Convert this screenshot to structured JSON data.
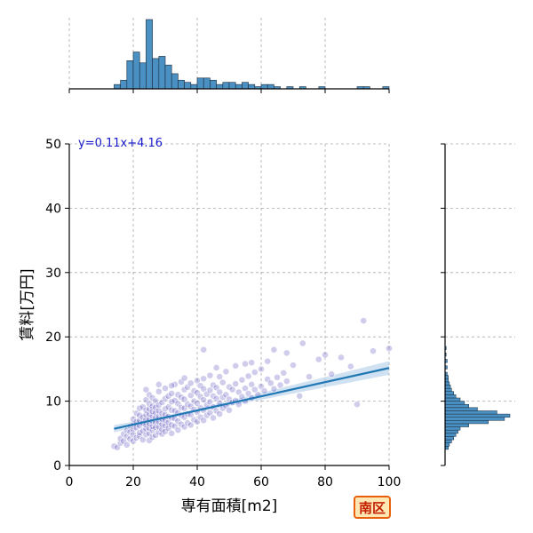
{
  "badge": {
    "label": "南区"
  },
  "chart_data": {
    "type": "scatter",
    "xlabel": "専有面積[m2]",
    "ylabel": "賃料[万円]",
    "xlim": [
      0,
      100
    ],
    "ylim": [
      0,
      50
    ],
    "xticks": [
      "0",
      "20",
      "40",
      "60",
      "80",
      "100"
    ],
    "yticks": [
      "0",
      "10",
      "20",
      "30",
      "40",
      "50"
    ],
    "grid": true,
    "regression": {
      "label": "y=0.11x+4.16",
      "slope": 0.11,
      "intercept": 4.16,
      "x_range": [
        14,
        100
      ],
      "color": "#1f77b4",
      "ci_color": "#aac8e6"
    },
    "scatter_color": "#2a1aa8",
    "marginal_color": "#4a90c2",
    "top_histogram": {
      "bin_width": 2,
      "bins": [
        {
          "x0": 14,
          "count": 2
        },
        {
          "x0": 16,
          "count": 4
        },
        {
          "x0": 18,
          "count": 13
        },
        {
          "x0": 20,
          "count": 17
        },
        {
          "x0": 22,
          "count": 12
        },
        {
          "x0": 24,
          "count": 32
        },
        {
          "x0": 26,
          "count": 14
        },
        {
          "x0": 28,
          "count": 15
        },
        {
          "x0": 30,
          "count": 11
        },
        {
          "x0": 32,
          "count": 7
        },
        {
          "x0": 34,
          "count": 4
        },
        {
          "x0": 36,
          "count": 3
        },
        {
          "x0": 38,
          "count": 2
        },
        {
          "x0": 40,
          "count": 5
        },
        {
          "x0": 42,
          "count": 5
        },
        {
          "x0": 44,
          "count": 4
        },
        {
          "x0": 46,
          "count": 2
        },
        {
          "x0": 48,
          "count": 3
        },
        {
          "x0": 50,
          "count": 3
        },
        {
          "x0": 52,
          "count": 2
        },
        {
          "x0": 54,
          "count": 3
        },
        {
          "x0": 56,
          "count": 2
        },
        {
          "x0": 58,
          "count": 1
        },
        {
          "x0": 60,
          "count": 2
        },
        {
          "x0": 62,
          "count": 2
        },
        {
          "x0": 64,
          "count": 1
        },
        {
          "x0": 66,
          "count": 0
        },
        {
          "x0": 68,
          "count": 1
        },
        {
          "x0": 70,
          "count": 0
        },
        {
          "x0": 72,
          "count": 1
        },
        {
          "x0": 74,
          "count": 0
        },
        {
          "x0": 76,
          "count": 0
        },
        {
          "x0": 78,
          "count": 1
        },
        {
          "x0": 80,
          "count": 0
        },
        {
          "x0": 82,
          "count": 0
        },
        {
          "x0": 84,
          "count": 0
        },
        {
          "x0": 86,
          "count": 0
        },
        {
          "x0": 88,
          "count": 0
        },
        {
          "x0": 90,
          "count": 1
        },
        {
          "x0": 92,
          "count": 1
        },
        {
          "x0": 94,
          "count": 0
        },
        {
          "x0": 96,
          "count": 0
        },
        {
          "x0": 98,
          "count": 1
        }
      ]
    },
    "right_histogram": {
      "bin_width": 0.5,
      "bins": [
        {
          "y0": 2.5,
          "count": 3
        },
        {
          "y0": 3.0,
          "count": 4
        },
        {
          "y0": 3.5,
          "count": 6
        },
        {
          "y0": 4.0,
          "count": 8
        },
        {
          "y0": 4.5,
          "count": 10
        },
        {
          "y0": 5.0,
          "count": 12
        },
        {
          "y0": 5.5,
          "count": 14
        },
        {
          "y0": 6.0,
          "count": 22
        },
        {
          "y0": 6.5,
          "count": 40
        },
        {
          "y0": 7.0,
          "count": 55
        },
        {
          "y0": 7.5,
          "count": 60
        },
        {
          "y0": 8.0,
          "count": 48
        },
        {
          "y0": 8.5,
          "count": 30
        },
        {
          "y0": 9.0,
          "count": 22
        },
        {
          "y0": 9.5,
          "count": 18
        },
        {
          "y0": 10.0,
          "count": 14
        },
        {
          "y0": 10.5,
          "count": 10
        },
        {
          "y0": 11.0,
          "count": 8
        },
        {
          "y0": 11.5,
          "count": 6
        },
        {
          "y0": 12.0,
          "count": 5
        },
        {
          "y0": 12.5,
          "count": 4
        },
        {
          "y0": 13.0,
          "count": 3
        },
        {
          "y0": 13.5,
          "count": 3
        },
        {
          "y0": 14.0,
          "count": 2
        },
        {
          "y0": 15.0,
          "count": 2
        },
        {
          "y0": 16.0,
          "count": 2
        },
        {
          "y0": 17.0,
          "count": 1
        },
        {
          "y0": 18.0,
          "count": 1
        }
      ]
    },
    "points": [
      [
        14,
        3
      ],
      [
        15,
        2.8
      ],
      [
        16,
        3.5
      ],
      [
        16,
        4.2
      ],
      [
        17,
        3.8
      ],
      [
        17,
        4.9
      ],
      [
        18,
        4.5
      ],
      [
        18,
        5.5
      ],
      [
        18,
        3.2
      ],
      [
        19,
        4.1
      ],
      [
        19,
        6.1
      ],
      [
        19,
        5.2
      ],
      [
        20,
        3.8
      ],
      [
        20,
        4.8
      ],
      [
        20,
        5.6
      ],
      [
        20,
        6.4
      ],
      [
        20,
        7.2
      ],
      [
        21,
        4.3
      ],
      [
        21,
        5.9
      ],
      [
        21,
        6.8
      ],
      [
        21,
        8.1
      ],
      [
        22,
        4.6
      ],
      [
        22,
        5.1
      ],
      [
        22,
        6.2
      ],
      [
        22,
        7.0
      ],
      [
        22,
        7.8
      ],
      [
        22,
        8.9
      ],
      [
        23,
        4.0
      ],
      [
        23,
        5.4
      ],
      [
        23,
        6.6
      ],
      [
        23,
        7.5
      ],
      [
        23,
        9.1
      ],
      [
        24,
        4.8
      ],
      [
        24,
        5.7
      ],
      [
        24,
        6.3
      ],
      [
        24,
        7.1
      ],
      [
        24,
        7.9
      ],
      [
        24,
        8.6
      ],
      [
        24,
        10.2
      ],
      [
        25,
        3.9
      ],
      [
        25,
        5.0
      ],
      [
        25,
        5.8
      ],
      [
        25,
        6.5
      ],
      [
        25,
        7.3
      ],
      [
        25,
        8.0
      ],
      [
        25,
        8.8
      ],
      [
        25,
        9.6
      ],
      [
        25,
        11.0
      ],
      [
        26,
        4.4
      ],
      [
        26,
        5.5
      ],
      [
        26,
        6.1
      ],
      [
        26,
        6.9
      ],
      [
        26,
        7.7
      ],
      [
        26,
        8.4
      ],
      [
        26,
        9.2
      ],
      [
        26,
        10.5
      ],
      [
        27,
        4.7
      ],
      [
        27,
        5.9
      ],
      [
        27,
        6.7
      ],
      [
        27,
        7.4
      ],
      [
        27,
        8.2
      ],
      [
        27,
        9.0
      ],
      [
        27,
        10.0
      ],
      [
        28,
        5.2
      ],
      [
        28,
        6.0
      ],
      [
        28,
        6.8
      ],
      [
        28,
        7.6
      ],
      [
        28,
        8.5
      ],
      [
        28,
        9.4
      ],
      [
        28,
        11.5
      ],
      [
        29,
        4.9
      ],
      [
        29,
        5.6
      ],
      [
        29,
        6.4
      ],
      [
        29,
        7.2
      ],
      [
        29,
        8.1
      ],
      [
        29,
        9.8
      ],
      [
        30,
        5.3
      ],
      [
        30,
        6.2
      ],
      [
        30,
        7.0
      ],
      [
        30,
        7.9
      ],
      [
        30,
        8.8
      ],
      [
        30,
        10.4
      ],
      [
        30,
        12.0
      ],
      [
        31,
        5.8
      ],
      [
        31,
        6.7
      ],
      [
        31,
        7.6
      ],
      [
        31,
        9.1
      ],
      [
        31,
        10.8
      ],
      [
        32,
        5.0
      ],
      [
        32,
        6.3
      ],
      [
        32,
        7.4
      ],
      [
        32,
        8.6
      ],
      [
        32,
        9.9
      ],
      [
        32,
        11.2
      ],
      [
        33,
        6.1
      ],
      [
        33,
        7.3
      ],
      [
        33,
        8.5
      ],
      [
        33,
        10.1
      ],
      [
        33,
        12.6
      ],
      [
        34,
        5.5
      ],
      [
        34,
        6.9
      ],
      [
        34,
        8.2
      ],
      [
        34,
        9.6
      ],
      [
        34,
        11.0
      ],
      [
        35,
        6.4
      ],
      [
        35,
        7.8
      ],
      [
        35,
        9.0
      ],
      [
        35,
        10.6
      ],
      [
        35,
        13.0
      ],
      [
        36,
        6.0
      ],
      [
        36,
        7.5
      ],
      [
        36,
        8.9
      ],
      [
        36,
        10.3
      ],
      [
        36,
        11.8
      ],
      [
        37,
        6.6
      ],
      [
        37,
        8.0
      ],
      [
        37,
        9.5
      ],
      [
        37,
        12.2
      ],
      [
        38,
        6.3
      ],
      [
        38,
        7.9
      ],
      [
        38,
        9.2
      ],
      [
        38,
        10.9
      ],
      [
        38,
        12.8
      ],
      [
        39,
        7.1
      ],
      [
        39,
        8.7
      ],
      [
        39,
        10.0
      ],
      [
        39,
        11.6
      ],
      [
        40,
        6.8
      ],
      [
        40,
        8.3
      ],
      [
        40,
        9.7
      ],
      [
        40,
        11.3
      ],
      [
        40,
        13.2
      ],
      [
        41,
        7.5
      ],
      [
        41,
        9.0
      ],
      [
        41,
        10.7
      ],
      [
        41,
        12.4
      ],
      [
        42,
        7.0
      ],
      [
        42,
        8.6
      ],
      [
        42,
        10.2
      ],
      [
        42,
        11.9
      ],
      [
        42,
        13.5
      ],
      [
        43,
        7.8
      ],
      [
        43,
        9.4
      ],
      [
        43,
        11.1
      ],
      [
        44,
        8.2
      ],
      [
        44,
        9.9
      ],
      [
        44,
        11.7
      ],
      [
        44,
        14.0
      ],
      [
        45,
        7.4
      ],
      [
        45,
        9.1
      ],
      [
        45,
        10.8
      ],
      [
        45,
        12.5
      ],
      [
        46,
        8.5
      ],
      [
        46,
        10.4
      ],
      [
        46,
        12.1
      ],
      [
        47,
        8.0
      ],
      [
        47,
        9.7
      ],
      [
        47,
        11.4
      ],
      [
        47,
        13.8
      ],
      [
        48,
        8.9
      ],
      [
        48,
        10.6
      ],
      [
        48,
        12.9
      ],
      [
        49,
        9.3
      ],
      [
        49,
        11.0
      ],
      [
        49,
        14.6
      ],
      [
        50,
        8.6
      ],
      [
        50,
        10.3
      ],
      [
        50,
        12.2
      ],
      [
        51,
        9.8
      ],
      [
        51,
        11.8
      ],
      [
        52,
        10.1
      ],
      [
        52,
        12.7
      ],
      [
        52,
        15.5
      ],
      [
        53,
        9.5
      ],
      [
        53,
        11.4
      ],
      [
        54,
        10.7
      ],
      [
        54,
        13.3
      ],
      [
        55,
        10.0
      ],
      [
        55,
        12.0
      ],
      [
        55,
        15.8
      ],
      [
        56,
        11.2
      ],
      [
        56,
        13.9
      ],
      [
        57,
        10.5
      ],
      [
        57,
        12.6
      ],
      [
        58,
        11.8
      ],
      [
        58,
        14.5
      ],
      [
        59,
        11.0
      ],
      [
        60,
        12.3
      ],
      [
        60,
        15.0
      ],
      [
        61,
        11.6
      ],
      [
        62,
        13.4
      ],
      [
        62,
        16.2
      ],
      [
        63,
        12.8
      ],
      [
        64,
        11.9
      ],
      [
        65,
        13.7
      ],
      [
        66,
        12.5
      ],
      [
        67,
        14.4
      ],
      [
        68,
        13.1
      ],
      [
        70,
        15.6
      ],
      [
        72,
        10.8
      ],
      [
        73,
        19.0
      ],
      [
        75,
        13.8
      ],
      [
        78,
        16.5
      ],
      [
        80,
        17.2
      ],
      [
        82,
        14.2
      ],
      [
        85,
        16.8
      ],
      [
        88,
        15.4
      ],
      [
        90,
        9.5
      ],
      [
        92,
        22.5
      ],
      [
        95,
        17.8
      ],
      [
        100,
        18.2
      ],
      [
        42,
        18.0
      ],
      [
        57,
        16.0
      ],
      [
        64,
        18.0
      ],
      [
        68,
        17.5
      ],
      [
        46,
        15.2
      ],
      [
        36,
        13.6
      ],
      [
        32,
        12.4
      ],
      [
        28,
        12.6
      ],
      [
        24,
        11.8
      ]
    ]
  }
}
